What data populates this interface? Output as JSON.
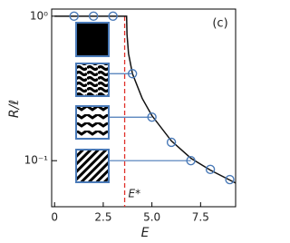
{
  "chart_data": {
    "type": "line",
    "panel_label": "(c)",
    "x_label": "E",
    "y_label": "R/ℓ",
    "annotation": "E*",
    "threshold_x": 3.6,
    "threshold_color": "#e0302a",
    "log_y": true,
    "xlim": [
      -0.15,
      9.3
    ],
    "ylim": [
      0.048,
      1.12
    ],
    "xticks": [
      0,
      2.5,
      {
        "value": 5,
        "label": "5.0"
      },
      {
        "value": 7.5,
        "label": "7.5"
      }
    ],
    "yticks": [
      {
        "value": 1,
        "label": "10⁰"
      },
      {
        "value": 0.1,
        "label": "10⁻¹"
      }
    ],
    "curve": {
      "color": "#111111",
      "x": [
        0,
        3.7,
        3.72,
        3.8,
        4,
        4.5,
        5,
        6,
        7,
        8,
        9.3
      ],
      "values": [
        1,
        1,
        0.75,
        0.55,
        0.4,
        0.27,
        0.205,
        0.137,
        0.104,
        0.086,
        0.07
      ]
    },
    "points": {
      "color": "#4a7ab8",
      "x": [
        1,
        2,
        3,
        4,
        5,
        6,
        7,
        8,
        9
      ],
      "values": [
        1,
        1,
        1,
        0.4,
        0.2,
        0.134,
        0.1,
        0.087,
        0.074
      ]
    }
  }
}
